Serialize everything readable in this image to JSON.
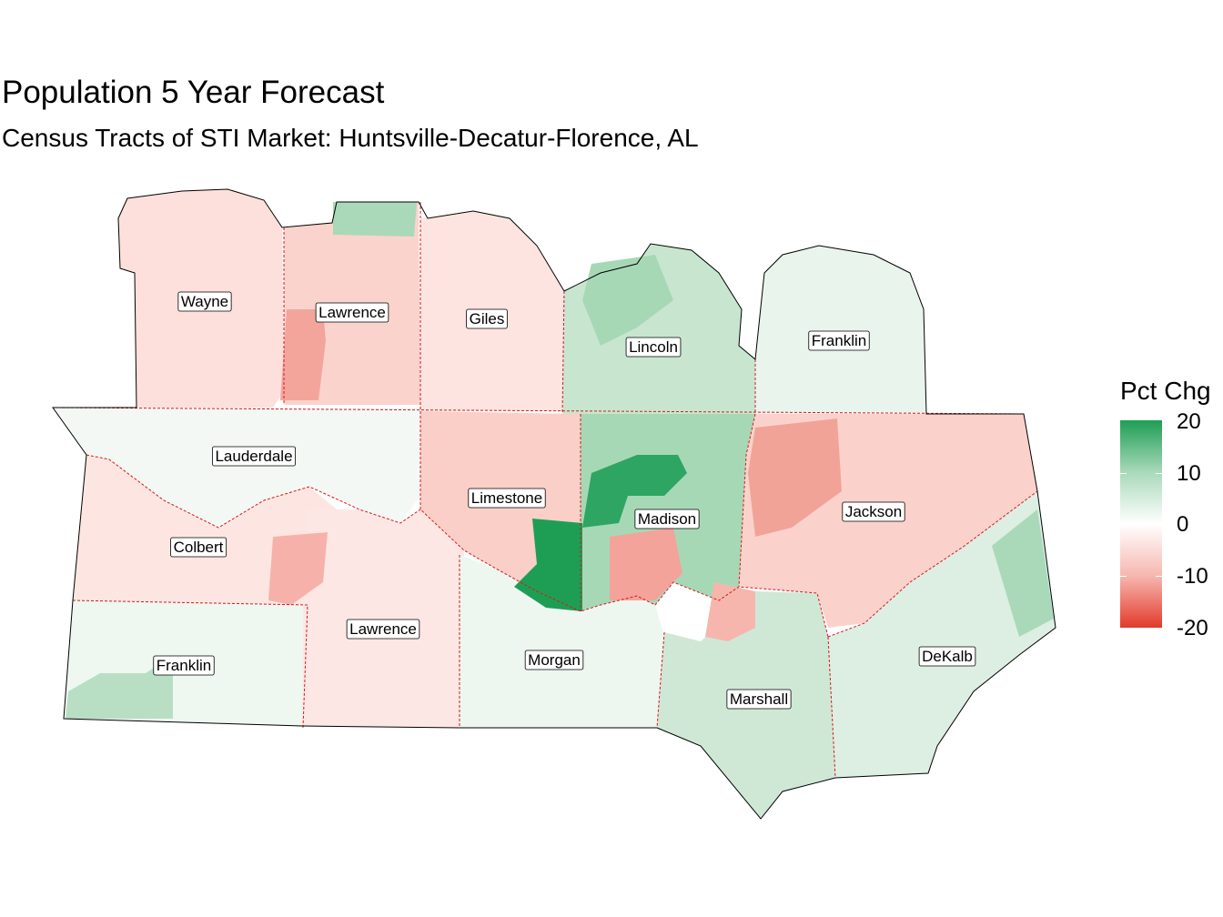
{
  "title": "Population 5 Year Forecast",
  "subtitle": "Census Tracts of STI Market: Huntsville-Decatur-Florence, AL",
  "legend": {
    "title": "Pct Chg",
    "ticks": [
      "20",
      "10",
      "0",
      "-10",
      "-20"
    ],
    "colors": {
      "high": "#1e9e55",
      "mid": "#ffffff",
      "low": "#e23b2b"
    }
  },
  "counties": [
    {
      "name": "Wayne",
      "pct_chg": -3
    },
    {
      "name": "Lawrence",
      "pct_chg": -4
    },
    {
      "name": "Giles",
      "pct_chg": -2
    },
    {
      "name": "Lincoln",
      "pct_chg": 6
    },
    {
      "name": "Franklin",
      "pct_chg": 2
    },
    {
      "name": "Lauderdale",
      "pct_chg": 1
    },
    {
      "name": "Limestone",
      "pct_chg": -1
    },
    {
      "name": "Madison",
      "pct_chg": 5
    },
    {
      "name": "Jackson",
      "pct_chg": -7
    },
    {
      "name": "Colbert",
      "pct_chg": -2
    },
    {
      "name": "Lawrence",
      "pct_chg": -2
    },
    {
      "name": "Franklin",
      "pct_chg": 1
    },
    {
      "name": "Morgan",
      "pct_chg": 2
    },
    {
      "name": "Marshall",
      "pct_chg": 4
    },
    {
      "name": "DeKalb",
      "pct_chg": 3
    }
  ]
}
